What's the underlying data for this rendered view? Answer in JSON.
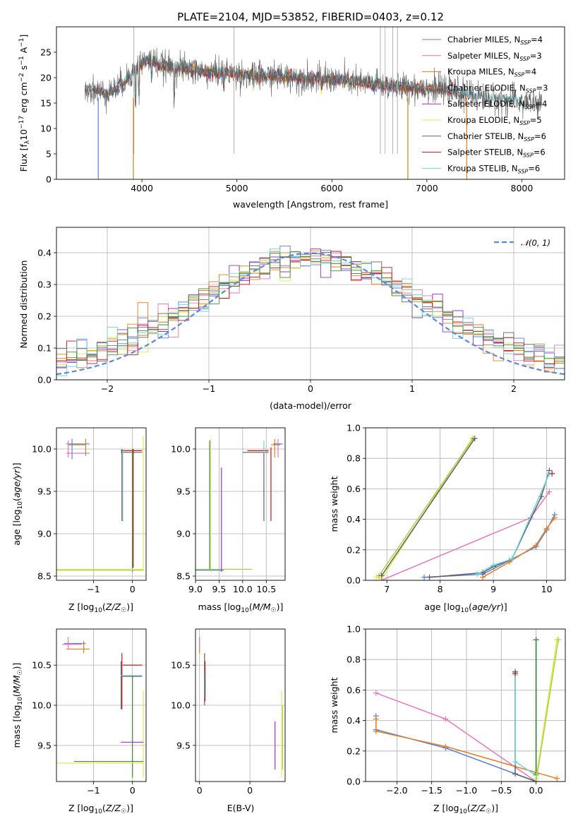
{
  "figure": {
    "title": "PLATE=2104, MJD=53852, FIBERID=0403, z=0.12"
  },
  "colors": {
    "Chabrier MILES": "#5b7fd6",
    "Salpeter MILES": "#e377c2",
    "Kroupa MILES": "#c8860f",
    "Chabrier ELODIE": "#e67e22",
    "Salpeter ELODIE": "#9b30c8",
    "Kroupa ELODIE": "#e5e84a",
    "Chabrier STELIB": "#606060",
    "Salpeter STELIB": "#c0171a",
    "Kroupa STELIB": "#6fd4e0",
    "extra_green": "#3d8a3d",
    "extra_yellowgreen": "#a5d14b"
  },
  "chart_data": [
    {
      "type": "line",
      "panel": "spectrum",
      "xlabel": "wavelength [Angstrom, rest frame]",
      "ylabel": "Flux [fλ10⁻¹⁷ erg cm⁻² s⁻¹ A⁻¹]",
      "xlim": [
        3100,
        8450
      ],
      "ylim": [
        0,
        30
      ],
      "xticks": [
        4000,
        5000,
        6000,
        7000,
        8000
      ],
      "yticks": [
        0,
        5,
        10,
        15,
        20,
        25
      ],
      "legend_position": "top-right",
      "legend": [
        "Chabrier MILES, N_SSP=4",
        "Salpeter MILES, N_SSP=3",
        "Kroupa MILES, N_SSP=4",
        "Chabrier ELODIE, N_SSP=3",
        "Salpeter ELODIE, N_SSP=4",
        "Kroupa ELODIE, N_SSP=5",
        "Chabrier STELIB, N_SSP=6",
        "Salpeter STELIB, N_SSP=6",
        "Kroupa STELIB, N_SSP=6"
      ],
      "data_x": [
        3400,
        3500,
        3600,
        3700,
        3800,
        3900,
        4000,
        4100,
        4200,
        4300,
        4400,
        4500,
        4700,
        4900,
        5100,
        5300,
        5500,
        5700,
        5900,
        6100,
        6300,
        6500,
        6700,
        6900,
        7100,
        7300,
        7500,
        7700,
        7900,
        8100,
        8200
      ],
      "data_y": [
        18,
        17.5,
        17,
        17.5,
        19,
        21,
        23,
        23.5,
        22.5,
        22,
        22,
        21.5,
        21,
        21,
        20.5,
        20.3,
        20.2,
        20,
        19.8,
        19.5,
        19,
        18.6,
        18.2,
        18.1,
        17.8,
        17.2,
        16.5,
        15.8,
        15.4,
        15,
        14.5
      ]
    },
    {
      "type": "line",
      "panel": "residual_histogram",
      "xlabel": "(data-model)/error",
      "ylabel": "Normed distribution",
      "xlim": [
        -2.5,
        2.5
      ],
      "ylim": [
        0,
        0.48
      ],
      "xticks": [
        -2,
        -1,
        0,
        1,
        2
      ],
      "yticks": [
        0.0,
        0.1,
        0.2,
        0.3,
        0.4
      ],
      "legend": [
        "𝒩(0, 1)"
      ],
      "legend_position": "top-right",
      "hist_centers": [
        -2.375,
        -2.125,
        -1.875,
        -1.625,
        -1.375,
        -1.125,
        -0.875,
        -0.625,
        -0.375,
        -0.125,
        0.125,
        0.375,
        0.625,
        0.875,
        1.125,
        1.375,
        1.625,
        1.875,
        2.125,
        2.375
      ],
      "hist_values": [
        0.04,
        0.06,
        0.1,
        0.15,
        0.2,
        0.25,
        0.29,
        0.33,
        0.37,
        0.38,
        0.39,
        0.37,
        0.33,
        0.29,
        0.24,
        0.19,
        0.13,
        0.09,
        0.06,
        0.04
      ]
    },
    {
      "type": "scatter",
      "panel": "age_vs_Z",
      "xlabel": "Z [log₁₀(Z/Z☉)]",
      "ylabel": "age  [log₁₀(age/yr)]",
      "xlim": [
        -1.95,
        0.35
      ],
      "ylim": [
        8.45,
        10.25
      ],
      "xticks": [
        -1,
        0
      ],
      "yticks": [
        8.5,
        9.0,
        9.5,
        10.0
      ]
    },
    {
      "type": "scatter",
      "panel": "age_vs_mass",
      "xlabel": "mass [log₁₀(M/M☉)]",
      "ylabel": "",
      "xlim": [
        9.0,
        10.9
      ],
      "ylim": [
        8.45,
        10.25
      ],
      "xticks": [
        9.0,
        9.5,
        10.0,
        10.5
      ],
      "yticks": [
        8.5,
        9.0,
        9.5,
        10.0
      ]
    },
    {
      "type": "line",
      "panel": "massweight_vs_age",
      "xlabel": "age  [log₁₀(age/yr)]",
      "ylabel": "mass weight",
      "xlim": [
        6.6,
        10.35
      ],
      "ylim": [
        0,
        1.0
      ],
      "xticks": [
        7,
        8,
        9,
        10
      ],
      "yticks": [
        0.0,
        0.2,
        0.4,
        0.6,
        0.8,
        1.0
      ]
    },
    {
      "type": "scatter",
      "panel": "mass_vs_Z",
      "xlabel": "Z [log₁₀(Z/Z☉)]",
      "ylabel": "mass [log₁₀(M/M☉)]",
      "xlim": [
        -1.95,
        0.35
      ],
      "ylim": [
        9.05,
        10.95
      ],
      "xticks": [
        -1,
        0
      ],
      "yticks": [
        9.5,
        10.0,
        10.5
      ]
    },
    {
      "type": "scatter",
      "panel": "mass_vs_EBV",
      "xlabel": "E(B-V)",
      "ylabel": "",
      "xlim": [
        -0.008,
        0.17
      ],
      "ylim": [
        9.05,
        10.95
      ],
      "xticks": [
        0.0,
        0.1
      ],
      "yticks": [
        9.5,
        10.0,
        10.5
      ]
    },
    {
      "type": "line",
      "panel": "massweight_vs_Z",
      "xlabel": "Z [log₁₀(Z/Z☉)]",
      "ylabel": "mass weight",
      "xlim": [
        -2.45,
        0.42
      ],
      "ylim": [
        0,
        1.0
      ],
      "xticks": [
        -2.0,
        -1.5,
        -1.0,
        -0.5,
        0.0
      ],
      "yticks": [
        0.0,
        0.2,
        0.4,
        0.6,
        0.8,
        1.0
      ]
    }
  ]
}
